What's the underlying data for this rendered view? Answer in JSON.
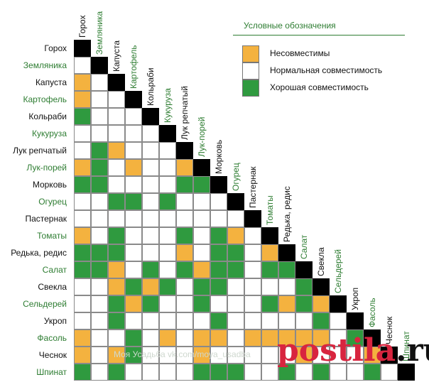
{
  "crops": [
    "Горох",
    "Земляника",
    "Капуста",
    "Картофель",
    "Кольраби",
    "Кукуруза",
    "Лук репчатый",
    "Лук-порей",
    "Морковь",
    "Огурец",
    "Пастернак",
    "Томаты",
    "Редька, редис",
    "Салат",
    "Свекла",
    "Сельдерей",
    "Укроп",
    "Фасоль",
    "Чеснок",
    "Шпинат"
  ],
  "crop_is_green": [
    false,
    true,
    false,
    true,
    false,
    true,
    false,
    true,
    false,
    true,
    false,
    true,
    false,
    true,
    false,
    true,
    false,
    true,
    false,
    true
  ],
  "matrix_rows": [
    "X",
    "NX",
    "ONX",
    "ONNX",
    "GNNNX",
    "NNNNNX",
    "NGONNNX",
    "OGNONNOX",
    "GGNNNNGGX",
    "NNGGNGNNNX",
    "NNNNNNNNNNX",
    "ONGNNNGNGONX",
    "GGGNNNONGGNOX",
    "GGONGNGOGGNGGX",
    "NNOGOGNGGNNNNGX",
    "NNGOGNNGNNNGOGOX",
    "NNGNNNNNGNNNNNGNX",
    "ONNGNONOONOOOOONGX",
    "ONOGNNNONNNNNONNNOX",
    "GNGNNNNGGGNNGNGNNGNX"
  ],
  "legend": {
    "title": "Условные обозначения",
    "items": [
      {
        "code": "O",
        "label": "Несовместимы"
      },
      {
        "code": "N",
        "label": "Нормальная совместимость"
      },
      {
        "code": "G",
        "label": "Хорошая совместимость"
      }
    ]
  },
  "colors": {
    "O": "#f4b23f",
    "N": "#ffffff",
    "G": "#2f9a3f",
    "X": "#000000",
    "green_text": "#2e7d32",
    "black_text": "#111111"
  },
  "watermark": "Моя Усадьба vk.com/moya_usadba",
  "brand": {
    "part1": "postila",
    "part2": ".ru"
  }
}
